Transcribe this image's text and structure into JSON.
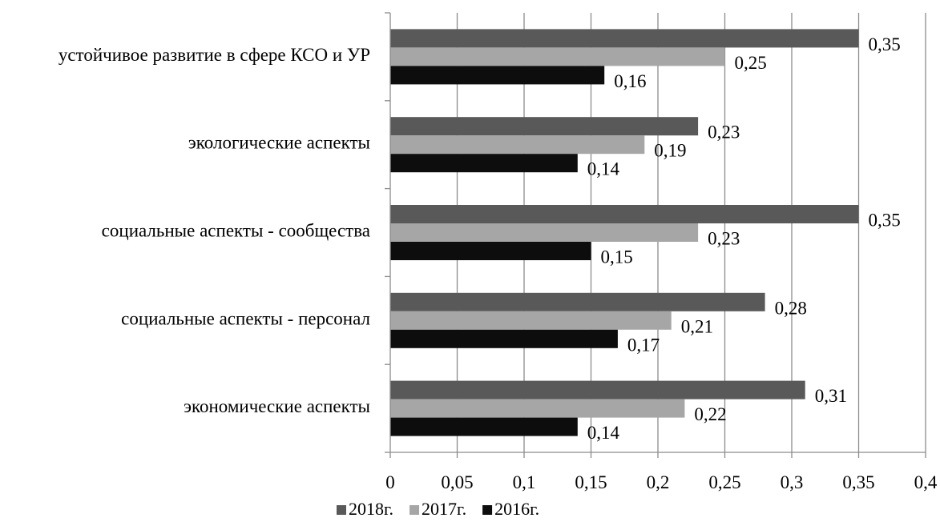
{
  "chart_data": {
    "type": "bar",
    "orientation": "horizontal",
    "categories": [
      "устойчивое развитие в сфере КСО и УР",
      "экологические аспекты",
      "социальные аспекты - сообщества",
      "социальные аспекты - персонал",
      "экономические аспекты"
    ],
    "series": [
      {
        "name": "2018г.",
        "color": "#595959",
        "values": [
          0.35,
          0.23,
          0.35,
          0.28,
          0.31
        ],
        "labels": [
          "0,35",
          "0,23",
          "0,35",
          "0,28",
          "0,31"
        ]
      },
      {
        "name": "2017г.",
        "color": "#a6a6a6",
        "values": [
          0.25,
          0.19,
          0.23,
          0.21,
          0.22
        ],
        "labels": [
          "0,25",
          "0,19",
          "0,23",
          "0,21",
          "0,22"
        ]
      },
      {
        "name": "2016г.",
        "color": "#0d0d0d",
        "values": [
          0.16,
          0.14,
          0.15,
          0.17,
          0.14
        ],
        "labels": [
          "0,16",
          "0,14",
          "0,15",
          "0,17",
          "0,14"
        ]
      }
    ],
    "xlim": [
      0,
      0.4
    ],
    "x_ticks": [
      0,
      0.05,
      0.1,
      0.15,
      0.2,
      0.25,
      0.3,
      0.35,
      0.4
    ],
    "x_tick_labels": [
      "0",
      "0,05",
      "0,1",
      "0,15",
      "0,2",
      "0,25",
      "0,3",
      "0,35",
      "0,4"
    ],
    "grid": "vertical",
    "legend": "bottom",
    "title": "",
    "xlabel": "",
    "ylabel": ""
  }
}
